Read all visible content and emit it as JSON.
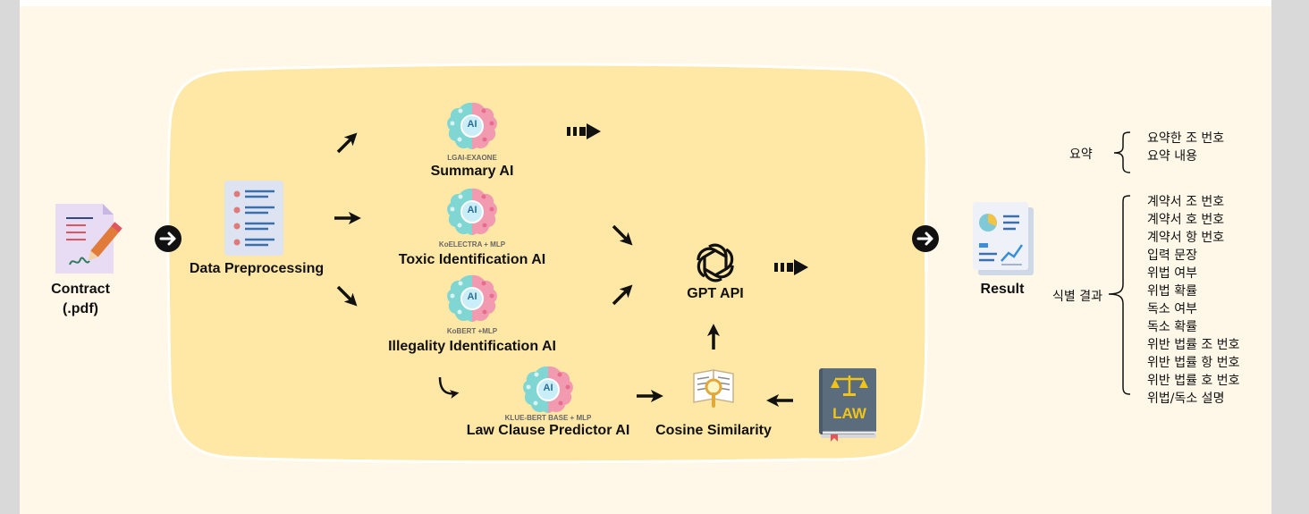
{
  "nodes": {
    "contract": {
      "line1": "Contract",
      "line2": "(.pdf)"
    },
    "preprocessing": "Data Preprocessing",
    "summary_ai": {
      "model": "LGAI-EXAONE",
      "label": "Summary AI"
    },
    "toxic_ai": {
      "model": "KoELECTRA + MLP",
      "label": "Toxic Identification AI"
    },
    "illegality_ai": {
      "model": "KoBERT +MLP",
      "label": "Illegality Identification AI"
    },
    "law_clause_ai": {
      "model": "KLUE-BERT BASE + MLP",
      "label": "Law Clause Predictor AI"
    },
    "cosine": "Cosine Similarity",
    "gpt": "GPT API",
    "result": "Result",
    "ai_icon_text": "AI",
    "law_book_text": "LAW"
  },
  "output": {
    "summary_group": {
      "label": "요약",
      "items": [
        "요약한 조 번호",
        "요약 내용"
      ]
    },
    "identification_group": {
      "label": "식별 결과",
      "items": [
        "계약서 조 번호",
        "계약서 호 번호",
        "계약서 항 번호",
        "입력 문장",
        "위법 여부",
        "위법 확률",
        "독소 여부",
        "독소 확률",
        "위반 법률 조 번호",
        "위반 법률 항 번호",
        "위반 법률 호 번호",
        "위법/독소 설명"
      ]
    }
  },
  "colors": {
    "background": "#fff8e9",
    "pipeline_blob": "#ffe8a6",
    "brain_left": "#7fd6d2",
    "brain_right": "#f29bb0",
    "arrow": "#111111"
  }
}
